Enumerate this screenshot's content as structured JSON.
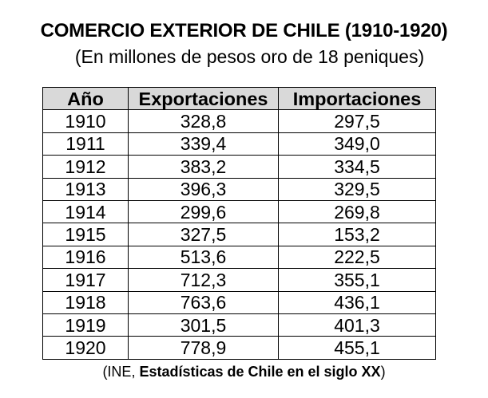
{
  "title": "COMERCIO EXTERIOR DE CHILE (1910-1920)",
  "subtitle": "(En millones de pesos oro de 18 peniques)",
  "table": {
    "headers": [
      "Año",
      "Exportaciones",
      "Importaciones"
    ],
    "rows": [
      [
        "1910",
        "328,8",
        "297,5"
      ],
      [
        "1911",
        "339,4",
        "349,0"
      ],
      [
        "1912",
        "383,2",
        "334,5"
      ],
      [
        "1913",
        "396,3",
        "329,5"
      ],
      [
        "1914",
        "299,6",
        "269,8"
      ],
      [
        "1915",
        "327,5",
        "153,2"
      ],
      [
        "1916",
        "513,6",
        "222,5"
      ],
      [
        "1917",
        "712,3",
        "355,1"
      ],
      [
        "1918",
        "763,6",
        "436,1"
      ],
      [
        "1919",
        "301,5",
        "401,3"
      ],
      [
        "1920",
        "778,9",
        "455,1"
      ]
    ]
  },
  "source": {
    "prefix": "(INE, ",
    "title": "Estadísticas de Chile en el siglo XX",
    "suffix": ")"
  },
  "colors": {
    "header_background": "#d9d9d9",
    "border": "#000000",
    "text": "#000000"
  }
}
